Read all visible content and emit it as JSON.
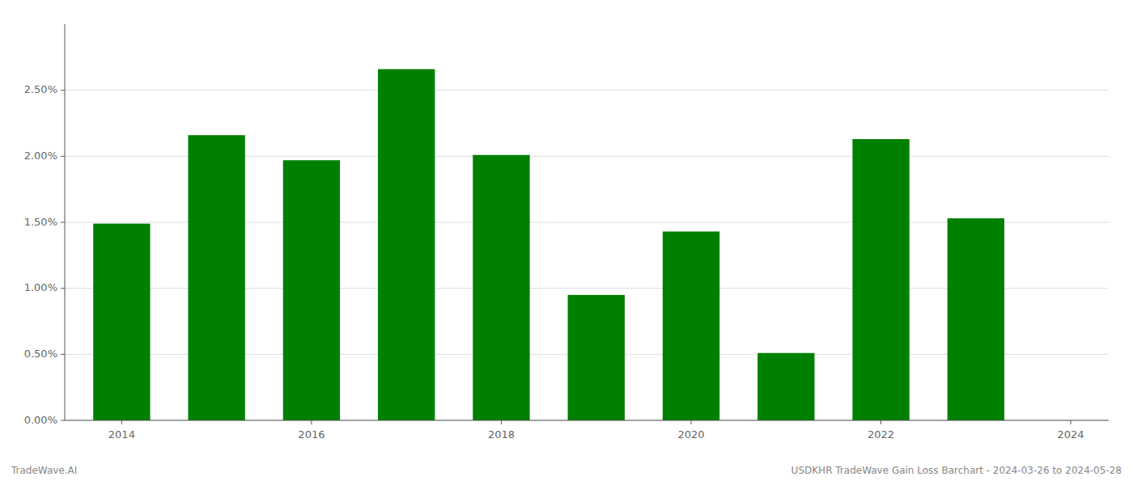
{
  "chart_data": {
    "type": "bar",
    "x": [
      2014,
      2015,
      2016,
      2017,
      2018,
      2019,
      2020,
      2021,
      2022,
      2023
    ],
    "values": [
      0.0149,
      0.0216,
      0.0197,
      0.0266,
      0.0201,
      0.0095,
      0.0143,
      0.0051,
      0.0213,
      0.0153
    ],
    "color": "#008000",
    "xlim": [
      2013.4,
      2024.4
    ],
    "xticks": [
      2014,
      2016,
      2018,
      2020,
      2022,
      2024
    ],
    "ylim": [
      0,
      0.03
    ],
    "yticks": [
      {
        "value": 0.0,
        "label": "0.00%"
      },
      {
        "value": 0.005,
        "label": "0.50%"
      },
      {
        "value": 0.01,
        "label": "1.00%"
      },
      {
        "value": 0.015,
        "label": "1.50%"
      },
      {
        "value": 0.02,
        "label": "2.00%"
      },
      {
        "value": 0.025,
        "label": "2.50%"
      }
    ],
    "grid": true,
    "annotations": [
      "TradeWave.AI",
      "USDKHR TradeWave Gain Loss Barchart - 2024-03-26 to 2024-05-28"
    ]
  }
}
